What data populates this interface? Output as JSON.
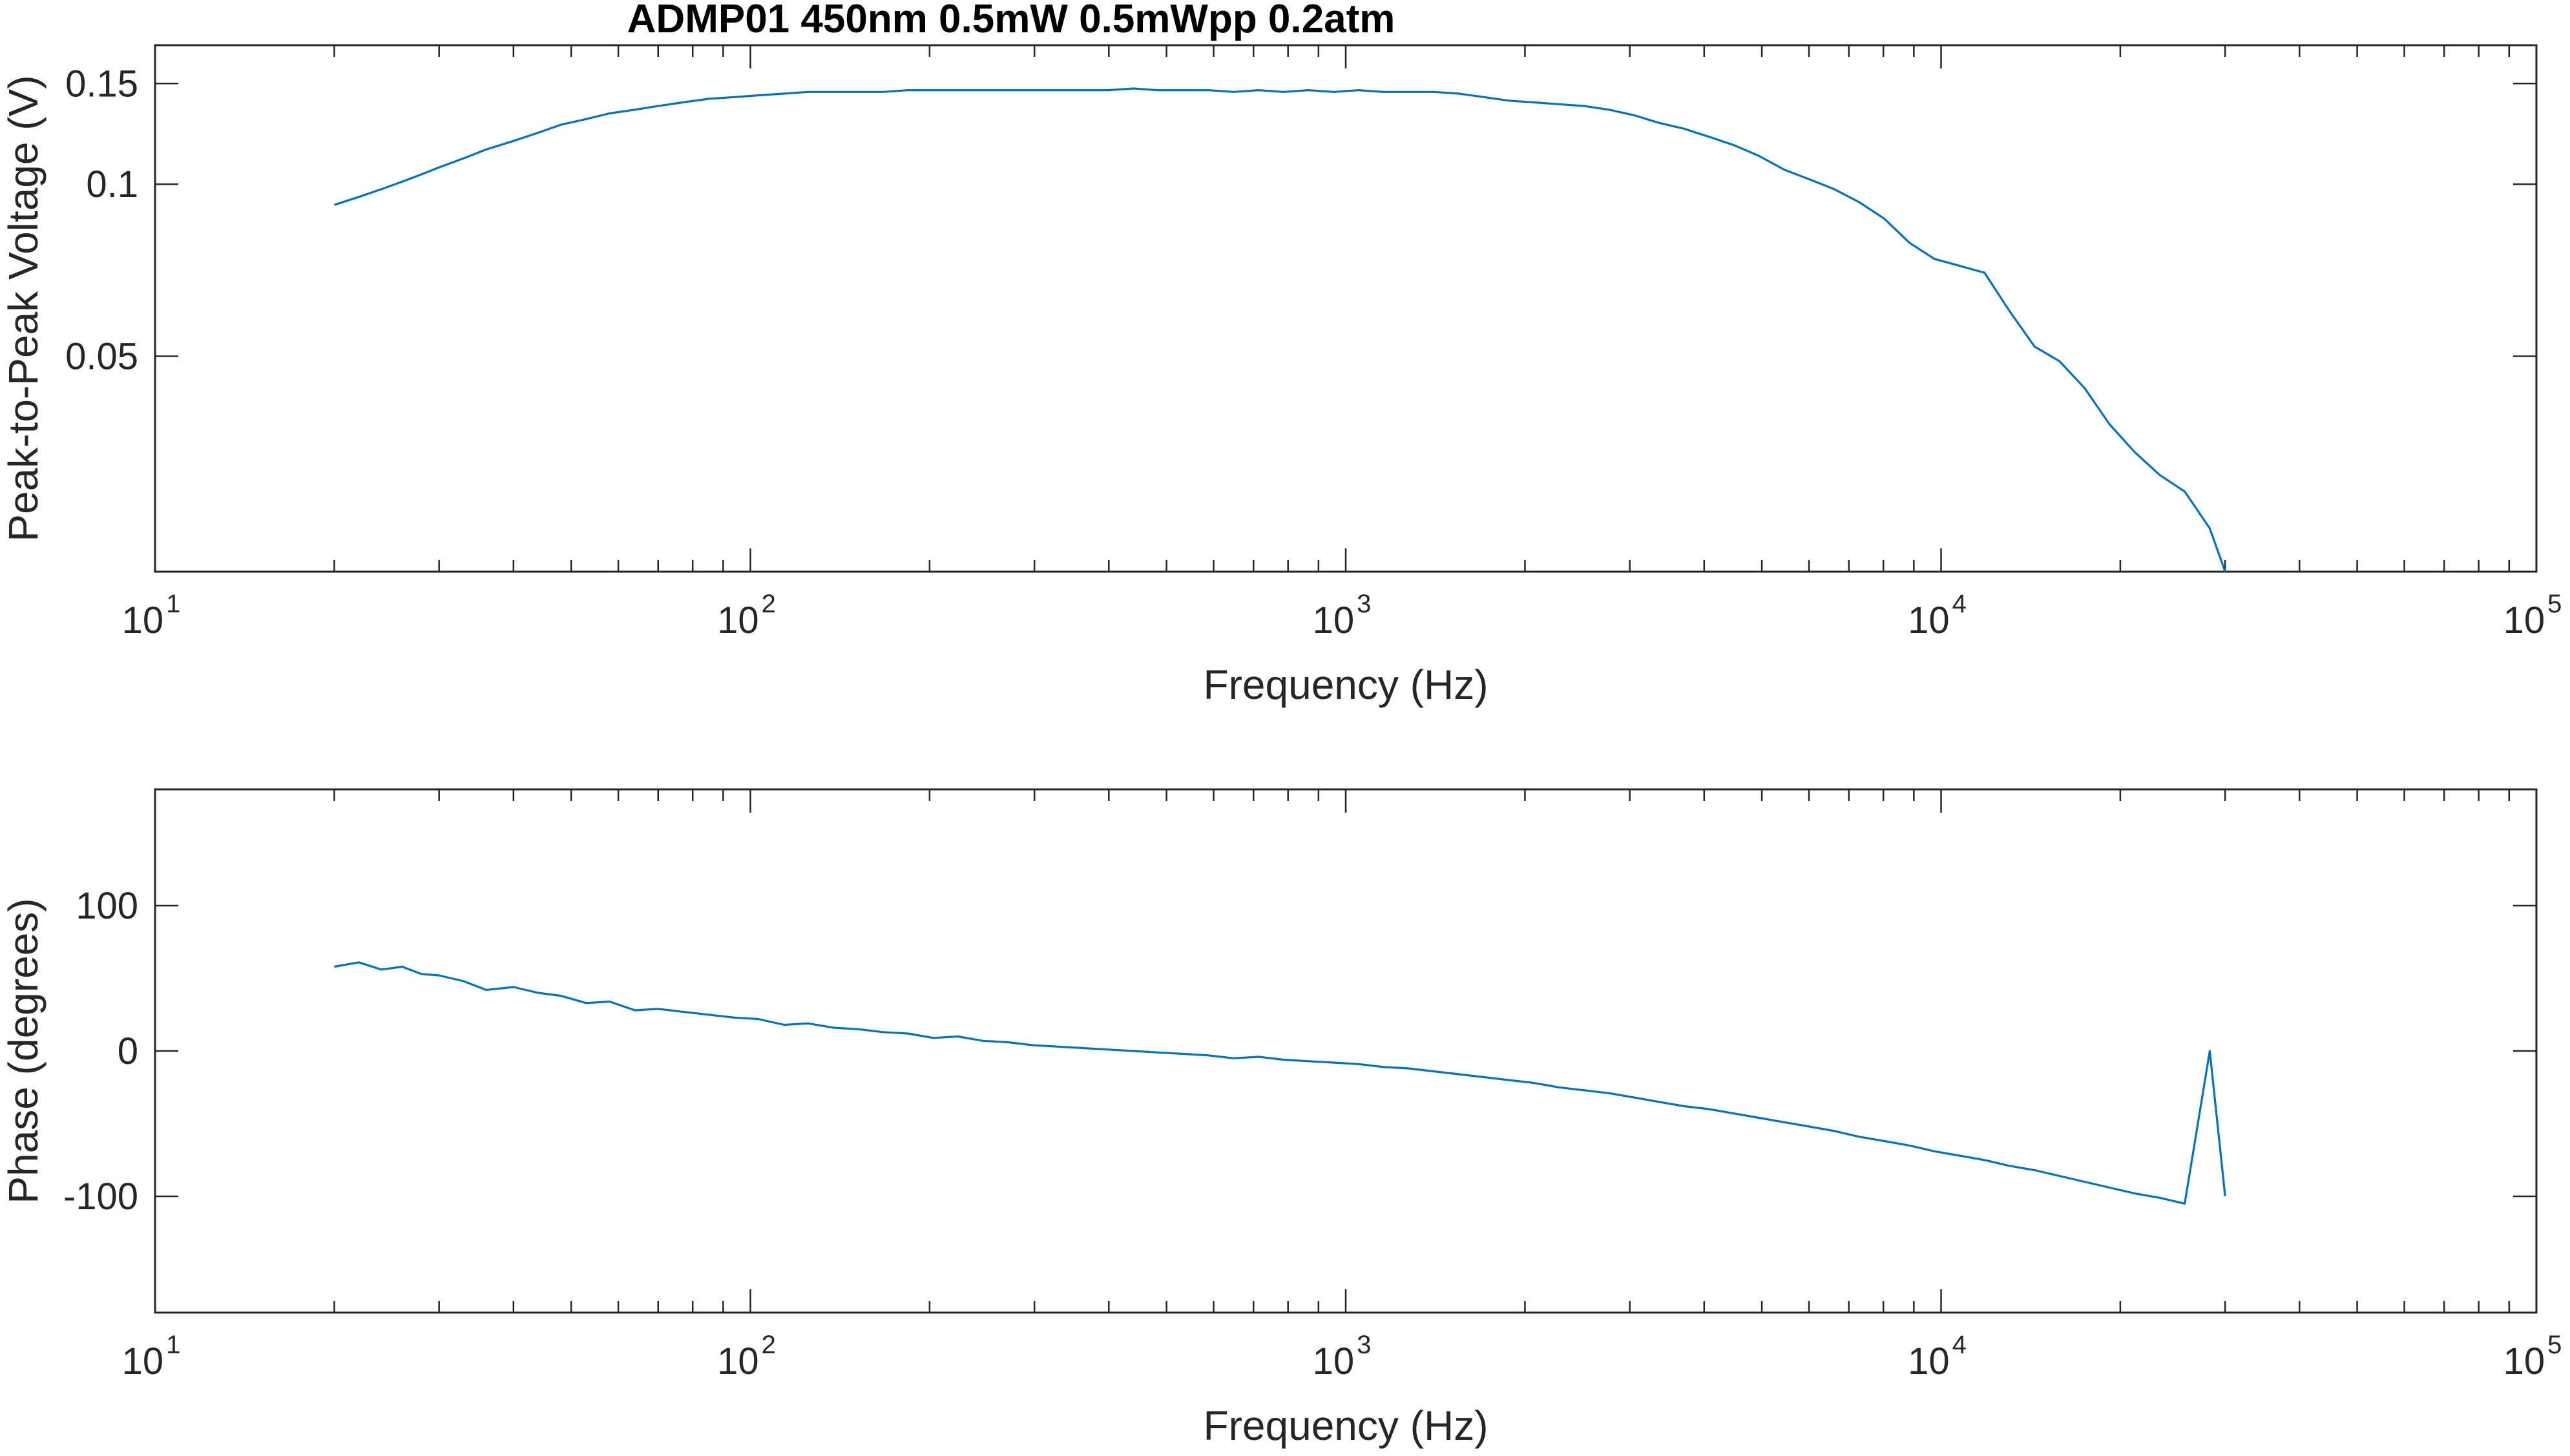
{
  "title": "ADMP01 450nm 0.5mW 0.5mWpp 0.2atm",
  "colors": {
    "series": "#0072BD",
    "axis": "#262626"
  },
  "chart_data": [
    {
      "type": "line",
      "xscale": "log",
      "yscale": "log",
      "xlabel": "Frequency (Hz)",
      "ylabel": "Peak-to-Peak Voltage (V)",
      "xlim": [
        10,
        100000
      ],
      "ylim": [
        0.021,
        0.175
      ],
      "grid": false,
      "xticks": [
        {
          "value": 10,
          "base": "10",
          "exp": "1"
        },
        {
          "value": 100,
          "base": "10",
          "exp": "2"
        },
        {
          "value": 1000,
          "base": "10",
          "exp": "3"
        },
        {
          "value": 10000,
          "base": "10",
          "exp": "4"
        },
        {
          "value": 100000,
          "base": "10",
          "exp": "5"
        }
      ],
      "yticks": [
        {
          "value": 0.05,
          "label": "0.05"
        },
        {
          "value": 0.1,
          "label": "0.1"
        },
        {
          "value": 0.15,
          "label": "0.15"
        }
      ],
      "x": [
        20,
        22,
        24,
        26,
        28,
        30,
        33,
        36,
        40,
        44,
        48,
        53,
        58,
        64,
        70,
        77,
        85,
        94,
        103,
        114,
        125,
        138,
        152,
        167,
        184,
        203,
        223,
        246,
        271,
        298,
        329,
        362,
        399,
        440,
        484,
        534,
        588,
        648,
        714,
        786,
        866,
        954,
        1051,
        1158,
        1276,
        1405,
        1548,
        1706,
        1879,
        2070,
        2281,
        2513,
        2768,
        3050,
        3360,
        3701,
        4078,
        4492,
        4949,
        5452,
        6006,
        6617,
        7289,
        8030,
        8846,
        9746,
        10736,
        11828,
        13030,
        14355,
        15814,
        17421,
        19192,
        21143,
        23293,
        25660,
        28270,
        30000
      ],
      "values": [
        0.092,
        0.095,
        0.098,
        0.101,
        0.104,
        0.107,
        0.111,
        0.115,
        0.119,
        0.123,
        0.127,
        0.13,
        0.133,
        0.135,
        0.137,
        0.139,
        0.141,
        0.142,
        0.143,
        0.144,
        0.145,
        0.145,
        0.145,
        0.145,
        0.146,
        0.146,
        0.146,
        0.146,
        0.146,
        0.146,
        0.146,
        0.146,
        0.146,
        0.147,
        0.146,
        0.146,
        0.146,
        0.145,
        0.146,
        0.145,
        0.146,
        0.145,
        0.146,
        0.145,
        0.145,
        0.145,
        0.144,
        0.142,
        0.14,
        0.139,
        0.138,
        0.137,
        0.135,
        0.132,
        0.128,
        0.125,
        0.121,
        0.117,
        0.112,
        0.106,
        0.102,
        0.098,
        0.093,
        0.087,
        0.079,
        0.074,
        0.072,
        0.07,
        0.06,
        0.052,
        0.049,
        0.044,
        0.038,
        0.034,
        0.031,
        0.029,
        0.025,
        0.021
      ]
    },
    {
      "type": "line",
      "xscale": "log",
      "yscale": "linear",
      "xlabel": "Frequency (Hz)",
      "ylabel": "Phase (degrees)",
      "xlim": [
        10,
        100000
      ],
      "ylim": [
        -180,
        180
      ],
      "grid": false,
      "xticks": [
        {
          "value": 10,
          "base": "10",
          "exp": "1"
        },
        {
          "value": 100,
          "base": "10",
          "exp": "2"
        },
        {
          "value": 1000,
          "base": "10",
          "exp": "3"
        },
        {
          "value": 10000,
          "base": "10",
          "exp": "4"
        },
        {
          "value": 100000,
          "base": "10",
          "exp": "5"
        }
      ],
      "yticks": [
        {
          "value": -100,
          "label": "-100"
        },
        {
          "value": 0,
          "label": "0"
        },
        {
          "value": 100,
          "label": "100"
        }
      ],
      "x": [
        20,
        22,
        24,
        26,
        28,
        30,
        33,
        36,
        40,
        44,
        48,
        53,
        58,
        64,
        70,
        77,
        85,
        94,
        103,
        114,
        125,
        138,
        152,
        167,
        184,
        203,
        223,
        246,
        271,
        298,
        329,
        362,
        399,
        440,
        484,
        534,
        588,
        648,
        714,
        786,
        866,
        954,
        1051,
        1158,
        1276,
        1405,
        1548,
        1706,
        1879,
        2070,
        2281,
        2513,
        2768,
        3050,
        3360,
        3701,
        4078,
        4492,
        4949,
        5452,
        6006,
        6617,
        7289,
        8030,
        8846,
        9746,
        10736,
        11828,
        13030,
        14355,
        15814,
        17421,
        19192,
        21143,
        23293,
        25660,
        28270,
        30000
      ],
      "values": [
        58,
        61,
        56,
        58,
        53,
        52,
        48,
        42,
        44,
        40,
        38,
        33,
        34,
        28,
        29,
        27,
        25,
        23,
        22,
        18,
        19,
        16,
        15,
        13,
        12,
        9,
        10,
        7,
        6,
        4,
        3,
        2,
        1,
        0,
        -1,
        -2,
        -3,
        -5,
        -4,
        -6,
        -7,
        -8,
        -9,
        -11,
        -12,
        -14,
        -16,
        -18,
        -20,
        -22,
        -25,
        -27,
        -29,
        -32,
        -35,
        -38,
        -40,
        -43,
        -46,
        -49,
        -52,
        -55,
        -59,
        -62,
        -65,
        -69,
        -72,
        -75,
        -79,
        -82,
        -86,
        -90,
        -94,
        -98,
        -101,
        -105,
        0,
        -100
      ]
    }
  ]
}
